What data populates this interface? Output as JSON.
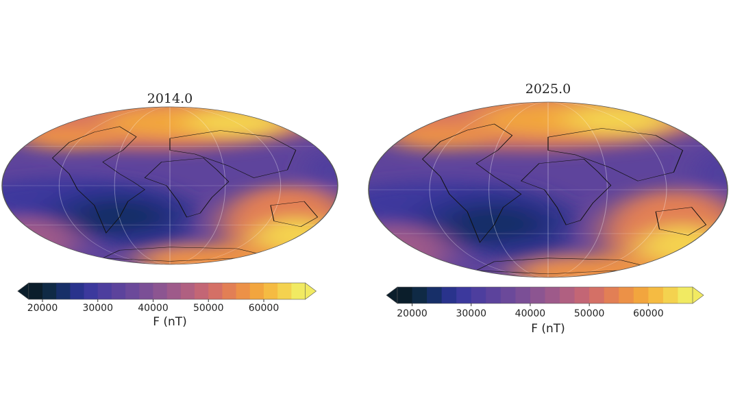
{
  "panels": [
    {
      "title": "2014.0",
      "colorbar": {
        "label": "F (nT)",
        "lim": [
          17500,
          67500
        ],
        "ticks": [
          20000,
          30000,
          40000,
          50000,
          60000
        ]
      }
    },
    {
      "title": "2025.0",
      "colorbar": {
        "label": "F (nT)",
        "lim": [
          17500,
          67500
        ],
        "ticks": [
          20000,
          30000,
          40000,
          50000,
          60000
        ]
      }
    }
  ],
  "colors": [
    "#0b1e2b",
    "#0f2a45",
    "#172f68",
    "#29338c",
    "#3c399d",
    "#4d3e9e",
    "#5c439c",
    "#6b499a",
    "#7b4f96",
    "#8c5591",
    "#9e5a8a",
    "#b06081",
    "#c36675",
    "#d47066",
    "#e27f55",
    "#ec9147",
    "#f2a53e",
    "#f5bb42",
    "#f4d24f",
    "#f1ea62"
  ]
}
